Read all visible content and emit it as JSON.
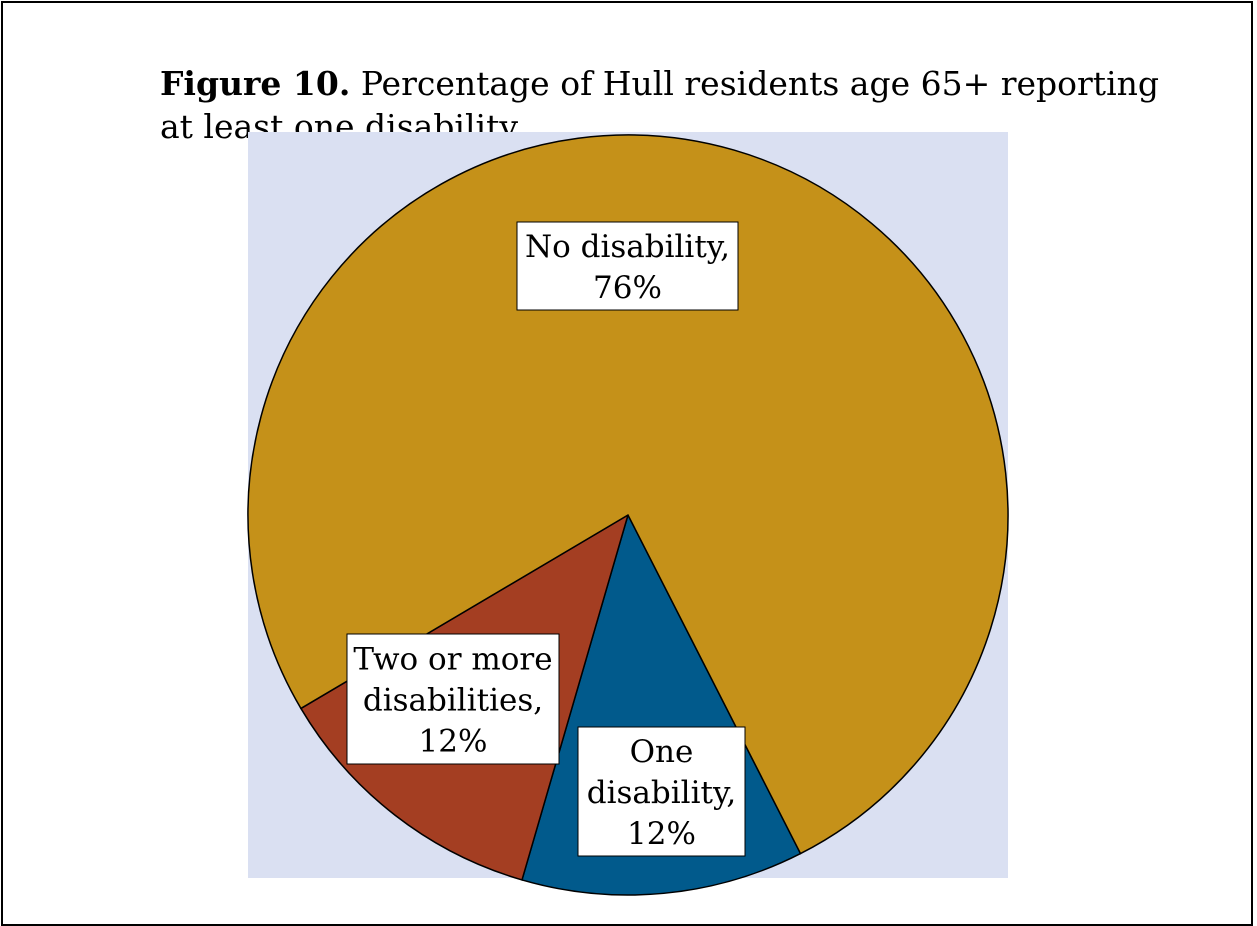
{
  "figure": {
    "label": "Figure 10.",
    "title": "Percentage of Hull residents age 65+ reporting at least one disability"
  },
  "chart_data": {
    "type": "pie",
    "title": "Percentage of Hull residents age 65+ reporting at least one disability",
    "plot_background": "#dae0f2",
    "slices": [
      {
        "label": "No disability,",
        "value_text": "76%",
        "value": 76,
        "color": "#c59119"
      },
      {
        "label": "One disability,",
        "value_text": "12%",
        "value": 12,
        "color": "#015a8c"
      },
      {
        "label": "Two or more disabilities,",
        "value_text": "12%",
        "value": 12,
        "color": "#a43e22"
      }
    ]
  }
}
